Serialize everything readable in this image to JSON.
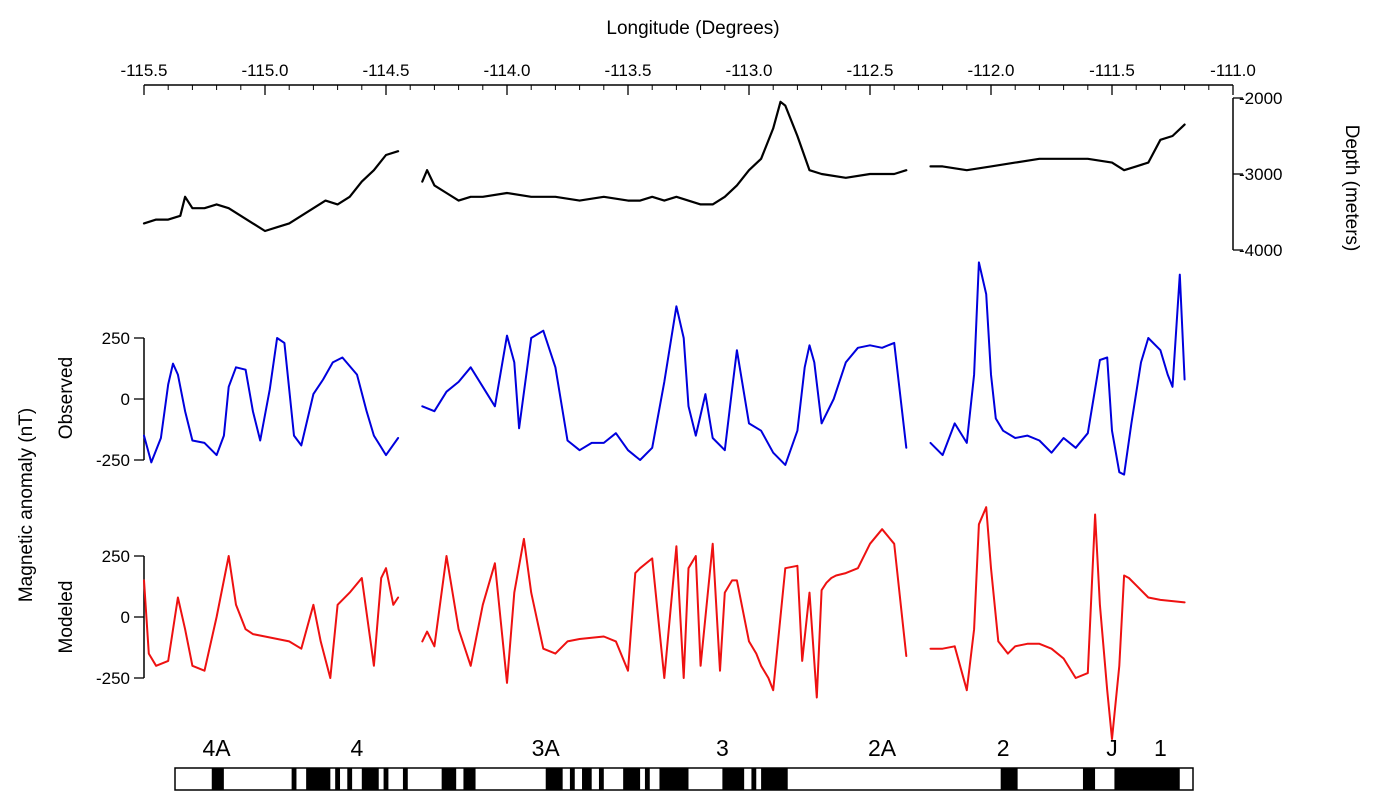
{
  "chart_data": {
    "type": "line",
    "title": "",
    "x_axis": {
      "label": "Longitude (Degrees)",
      "range": [
        -115.5,
        -111.0
      ],
      "ticks": [
        -115.5,
        -115.0,
        -114.5,
        -114.0,
        -113.5,
        -113.0,
        -112.5,
        -112.0,
        -111.5,
        -111.0
      ],
      "tick_labels": [
        "-115.5",
        "-115.0",
        "-114.5",
        "-114.0",
        "-113.5",
        "-113.0",
        "-112.5",
        "-112.0",
        "-111.5",
        "-111.0"
      ]
    },
    "shared_y_label": "Magnetic anomaly (nT)",
    "panels": [
      {
        "id": "depth",
        "ylabel": "Depth (meters)",
        "color": "#000000",
        "ylim": [
          -4000,
          -2000
        ],
        "ticks": [
          -2000,
          -3000,
          -4000
        ],
        "tick_labels": [
          "-2000",
          "-3000",
          "-4000"
        ],
        "segments": [
          {
            "x": [
              -115.5,
              -115.45,
              -115.4,
              -115.35,
              -115.33,
              -115.3,
              -115.25,
              -115.2,
              -115.15,
              -115.1,
              -115.05,
              -115.0,
              -114.95,
              -114.9,
              -114.85,
              -114.8,
              -114.75,
              -114.7,
              -114.65,
              -114.6,
              -114.55,
              -114.5,
              -114.45
            ],
            "y": [
              -3650,
              -3600,
              -3600,
              -3550,
              -3300,
              -3450,
              -3450,
              -3400,
              -3450,
              -3550,
              -3650,
              -3750,
              -3700,
              -3650,
              -3550,
              -3450,
              -3350,
              -3400,
              -3300,
              -3100,
              -2950,
              -2750,
              -2700
            ]
          },
          {
            "x": [
              -114.35,
              -114.33,
              -114.3,
              -114.25,
              -114.2,
              -114.15,
              -114.1,
              -114.0,
              -113.9,
              -113.8,
              -113.7,
              -113.6,
              -113.5,
              -113.45,
              -113.4,
              -113.35,
              -113.3,
              -113.2,
              -113.15,
              -113.1,
              -113.05,
              -113.0,
              -112.95,
              -112.9,
              -112.87,
              -112.85,
              -112.8,
              -112.75,
              -112.7,
              -112.6,
              -112.5,
              -112.4,
              -112.35
            ],
            "y": [
              -3100,
              -2950,
              -3150,
              -3250,
              -3350,
              -3300,
              -3300,
              -3250,
              -3300,
              -3300,
              -3350,
              -3300,
              -3350,
              -3350,
              -3300,
              -3350,
              -3300,
              -3400,
              -3400,
              -3300,
              -3150,
              -2950,
              -2800,
              -2400,
              -2050,
              -2100,
              -2500,
              -2950,
              -3000,
              -3050,
              -3000,
              -3000,
              -2950
            ]
          },
          {
            "x": [
              -112.25,
              -112.2,
              -112.1,
              -112.0,
              -111.9,
              -111.8,
              -111.7,
              -111.6,
              -111.5,
              -111.45,
              -111.4,
              -111.35,
              -111.3,
              -111.25,
              -111.2
            ],
            "y": [
              -2900,
              -2900,
              -2950,
              -2900,
              -2850,
              -2800,
              -2800,
              -2800,
              -2850,
              -2950,
              -2900,
              -2850,
              -2550,
              -2500,
              -2350
            ]
          }
        ]
      },
      {
        "id": "observed",
        "ylabel": "Observed",
        "color": "#0000dd",
        "ylim": [
          -250,
          250
        ],
        "ticks": [
          250,
          0,
          -250
        ],
        "tick_labels": [
          "250",
          "0",
          "-250"
        ],
        "segments": [
          {
            "x": [
              -115.5,
              -115.47,
              -115.43,
              -115.4,
              -115.38,
              -115.36,
              -115.33,
              -115.3,
              -115.25,
              -115.2,
              -115.17,
              -115.15,
              -115.12,
              -115.08,
              -115.05,
              -115.02,
              -114.98,
              -114.95,
              -114.92,
              -114.88,
              -114.85,
              -114.8,
              -114.76,
              -114.72,
              -114.68,
              -114.62,
              -114.58,
              -114.55,
              -114.5,
              -114.45
            ],
            "y": [
              -150,
              -260,
              -160,
              60,
              145,
              100,
              -50,
              -170,
              -180,
              -230,
              -150,
              50,
              130,
              120,
              -50,
              -170,
              40,
              250,
              230,
              -150,
              -190,
              20,
              80,
              150,
              170,
              100,
              -50,
              -150,
              -230,
              -160
            ]
          },
          {
            "x": [
              -114.35,
              -114.3,
              -114.25,
              -114.2,
              -114.15,
              -114.1,
              -114.05,
              -114.0,
              -113.97,
              -113.95,
              -113.9,
              -113.85,
              -113.8,
              -113.75,
              -113.7,
              -113.65,
              -113.6,
              -113.55,
              -113.5,
              -113.45,
              -113.4,
              -113.35,
              -113.3,
              -113.27,
              -113.25,
              -113.22,
              -113.18,
              -113.15,
              -113.1,
              -113.07,
              -113.05,
              -113.0,
              -112.95,
              -112.9,
              -112.85,
              -112.8,
              -112.77,
              -112.75,
              -112.73,
              -112.7,
              -112.65,
              -112.6,
              -112.55,
              -112.5,
              -112.45,
              -112.4,
              -112.35
            ],
            "y": [
              -30,
              -50,
              30,
              70,
              130,
              50,
              -30,
              260,
              150,
              -120,
              250,
              280,
              130,
              -170,
              -210,
              -180,
              -180,
              -140,
              -210,
              -250,
              -200,
              70,
              380,
              250,
              -30,
              -150,
              20,
              -160,
              -210,
              40,
              200,
              -100,
              -130,
              -220,
              -270,
              -130,
              130,
              220,
              150,
              -100,
              0,
              150,
              210,
              220,
              210,
              230,
              -200
            ]
          },
          {
            "x": [
              -112.25,
              -112.2,
              -112.15,
              -112.1,
              -112.07,
              -112.05,
              -112.02,
              -112.0,
              -111.98,
              -111.95,
              -111.9,
              -111.85,
              -111.8,
              -111.75,
              -111.7,
              -111.65,
              -111.6,
              -111.55,
              -111.52,
              -111.5,
              -111.47,
              -111.45,
              -111.42,
              -111.38,
              -111.35,
              -111.3,
              -111.27,
              -111.25,
              -111.22,
              -111.2
            ],
            "y": [
              -180,
              -230,
              -100,
              -180,
              100,
              560,
              430,
              100,
              -80,
              -130,
              -160,
              -150,
              -170,
              -220,
              -160,
              -200,
              -140,
              160,
              170,
              -130,
              -300,
              -310,
              -100,
              150,
              250,
              200,
              100,
              50,
              510,
              80
            ]
          }
        ]
      },
      {
        "id": "modeled",
        "ylabel": "Modeled",
        "color": "#ee1111",
        "ylim": [
          -250,
          250
        ],
        "ticks": [
          250,
          0,
          -250
        ],
        "tick_labels": [
          "250",
          "0",
          "-250"
        ],
        "segments": [
          {
            "x": [
              -115.5,
              -115.48,
              -115.45,
              -115.4,
              -115.36,
              -115.33,
              -115.3,
              -115.25,
              -115.2,
              -115.15,
              -115.12,
              -115.08,
              -115.05,
              -115.0,
              -114.9,
              -114.85,
              -114.8,
              -114.77,
              -114.73,
              -114.7,
              -114.65,
              -114.6,
              -114.55,
              -114.52,
              -114.5,
              -114.47,
              -114.45
            ],
            "y": [
              150,
              -150,
              -200,
              -180,
              80,
              -50,
              -200,
              -220,
              0,
              250,
              50,
              -50,
              -70,
              -80,
              -100,
              -130,
              50,
              -100,
              -250,
              50,
              100,
              160,
              -200,
              160,
              200,
              50,
              80
            ]
          },
          {
            "x": [
              -114.35,
              -114.33,
              -114.3,
              -114.25,
              -114.2,
              -114.15,
              -114.1,
              -114.05,
              -114.0,
              -113.97,
              -113.93,
              -113.9,
              -113.85,
              -113.8,
              -113.75,
              -113.7,
              -113.6,
              -113.55,
              -113.5,
              -113.47,
              -113.45,
              -113.4,
              -113.35,
              -113.3,
              -113.27,
              -113.25,
              -113.22,
              -113.2,
              -113.15,
              -113.12,
              -113.1,
              -113.07,
              -113.05,
              -113.0,
              -112.97,
              -112.95,
              -112.92,
              -112.9,
              -112.85,
              -112.8,
              -112.78,
              -112.75,
              -112.72,
              -112.7,
              -112.68,
              -112.66,
              -112.64,
              -112.6,
              -112.55,
              -112.5,
              -112.45,
              -112.4,
              -112.35
            ],
            "y": [
              -100,
              -60,
              -120,
              250,
              -50,
              -200,
              50,
              220,
              -270,
              100,
              320,
              100,
              -130,
              -150,
              -100,
              -90,
              -80,
              -100,
              -220,
              180,
              200,
              240,
              -250,
              290,
              -250,
              200,
              250,
              -200,
              300,
              -220,
              100,
              150,
              150,
              -100,
              -150,
              -200,
              -250,
              -300,
              200,
              210,
              -180,
              100,
              -330,
              110,
              140,
              160,
              170,
              180,
              200,
              300,
              360,
              300,
              -160
            ]
          },
          {
            "x": [
              -112.25,
              -112.2,
              -112.15,
              -112.1,
              -112.07,
              -112.05,
              -112.02,
              -112.0,
              -111.97,
              -111.93,
              -111.9,
              -111.85,
              -111.8,
              -111.75,
              -111.7,
              -111.65,
              -111.6,
              -111.57,
              -111.55,
              -111.52,
              -111.5,
              -111.47,
              -111.45,
              -111.43,
              -111.4,
              -111.35,
              -111.3,
              -111.2
            ],
            "y": [
              -130,
              -130,
              -120,
              -300,
              -50,
              380,
              450,
              200,
              -100,
              -150,
              -120,
              -110,
              -110,
              -130,
              -170,
              -250,
              -230,
              420,
              50,
              -300,
              -500,
              -200,
              170,
              160,
              130,
              80,
              70,
              60
            ]
          }
        ]
      }
    ],
    "chron_labels": [
      {
        "name": "4A",
        "x": -115.2
      },
      {
        "name": "4",
        "x": -114.62
      },
      {
        "name": "3A",
        "x": -113.84
      },
      {
        "name": "3",
        "x": -113.11
      },
      {
        "name": "2A",
        "x": -112.45
      },
      {
        "name": "2",
        "x": -111.95
      },
      {
        "name": "J",
        "x": -111.5
      },
      {
        "name": "1",
        "x": -111.3
      }
    ],
    "polarity_blocks_normal": [
      [
        -115.22,
        -115.17
      ],
      [
        -114.89,
        -114.87
      ],
      [
        -114.83,
        -114.73
      ],
      [
        -114.71,
        -114.69
      ],
      [
        -114.66,
        -114.64
      ],
      [
        -114.6,
        -114.53
      ],
      [
        -114.51,
        -114.49
      ],
      [
        -114.43,
        -114.41
      ],
      [
        -114.27,
        -114.21
      ],
      [
        -114.18,
        -114.13
      ],
      [
        -113.84,
        -113.77
      ],
      [
        -113.74,
        -113.72
      ],
      [
        -113.69,
        -113.65
      ],
      [
        -113.62,
        -113.6
      ],
      [
        -113.52,
        -113.45
      ],
      [
        -113.43,
        -113.41
      ],
      [
        -113.37,
        -113.25
      ],
      [
        -113.11,
        -113.02
      ],
      [
        -112.99,
        -112.97
      ],
      [
        -112.95,
        -112.84
      ],
      [
        -111.96,
        -111.89
      ],
      [
        -111.62,
        -111.57
      ],
      [
        -111.49,
        -111.22
      ]
    ]
  }
}
